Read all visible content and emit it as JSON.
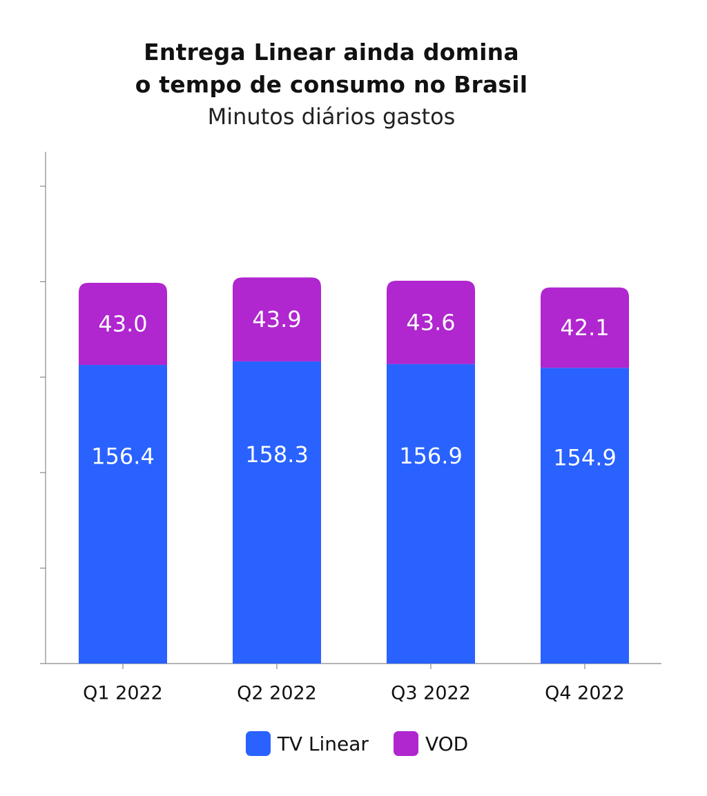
{
  "title_line1": "Entrega Linear ainda domina",
  "title_line2": "o tempo de consumo no Brasil",
  "subtitle": "Minutos diários gastos",
  "colors": {
    "tv_linear": "#2962FF",
    "vod": "#B026CF",
    "axis": "#888888",
    "label_text": "#FFFFFF"
  },
  "chart_data": {
    "type": "bar",
    "stacked": true,
    "categories": [
      "Q1 2022",
      "Q2 2022",
      "Q3 2022",
      "Q4 2022"
    ],
    "series": [
      {
        "name": "TV Linear",
        "values": [
          156.4,
          158.3,
          156.9,
          154.9
        ]
      },
      {
        "name": "VOD",
        "values": [
          43.0,
          43.9,
          43.6,
          42.1
        ]
      }
    ],
    "value_labels": {
      "TV Linear": [
        "156.4",
        "158.3",
        "156.9",
        "154.9"
      ],
      "VOD": [
        "43.0",
        "43.9",
        "43.6",
        "42.1"
      ]
    },
    "ylim": [
      0,
      250
    ],
    "yticks": [
      0,
      50,
      100,
      150,
      200,
      250
    ],
    "ytick_labels_shown": false,
    "grid": false,
    "legend_position": "bottom-center"
  }
}
